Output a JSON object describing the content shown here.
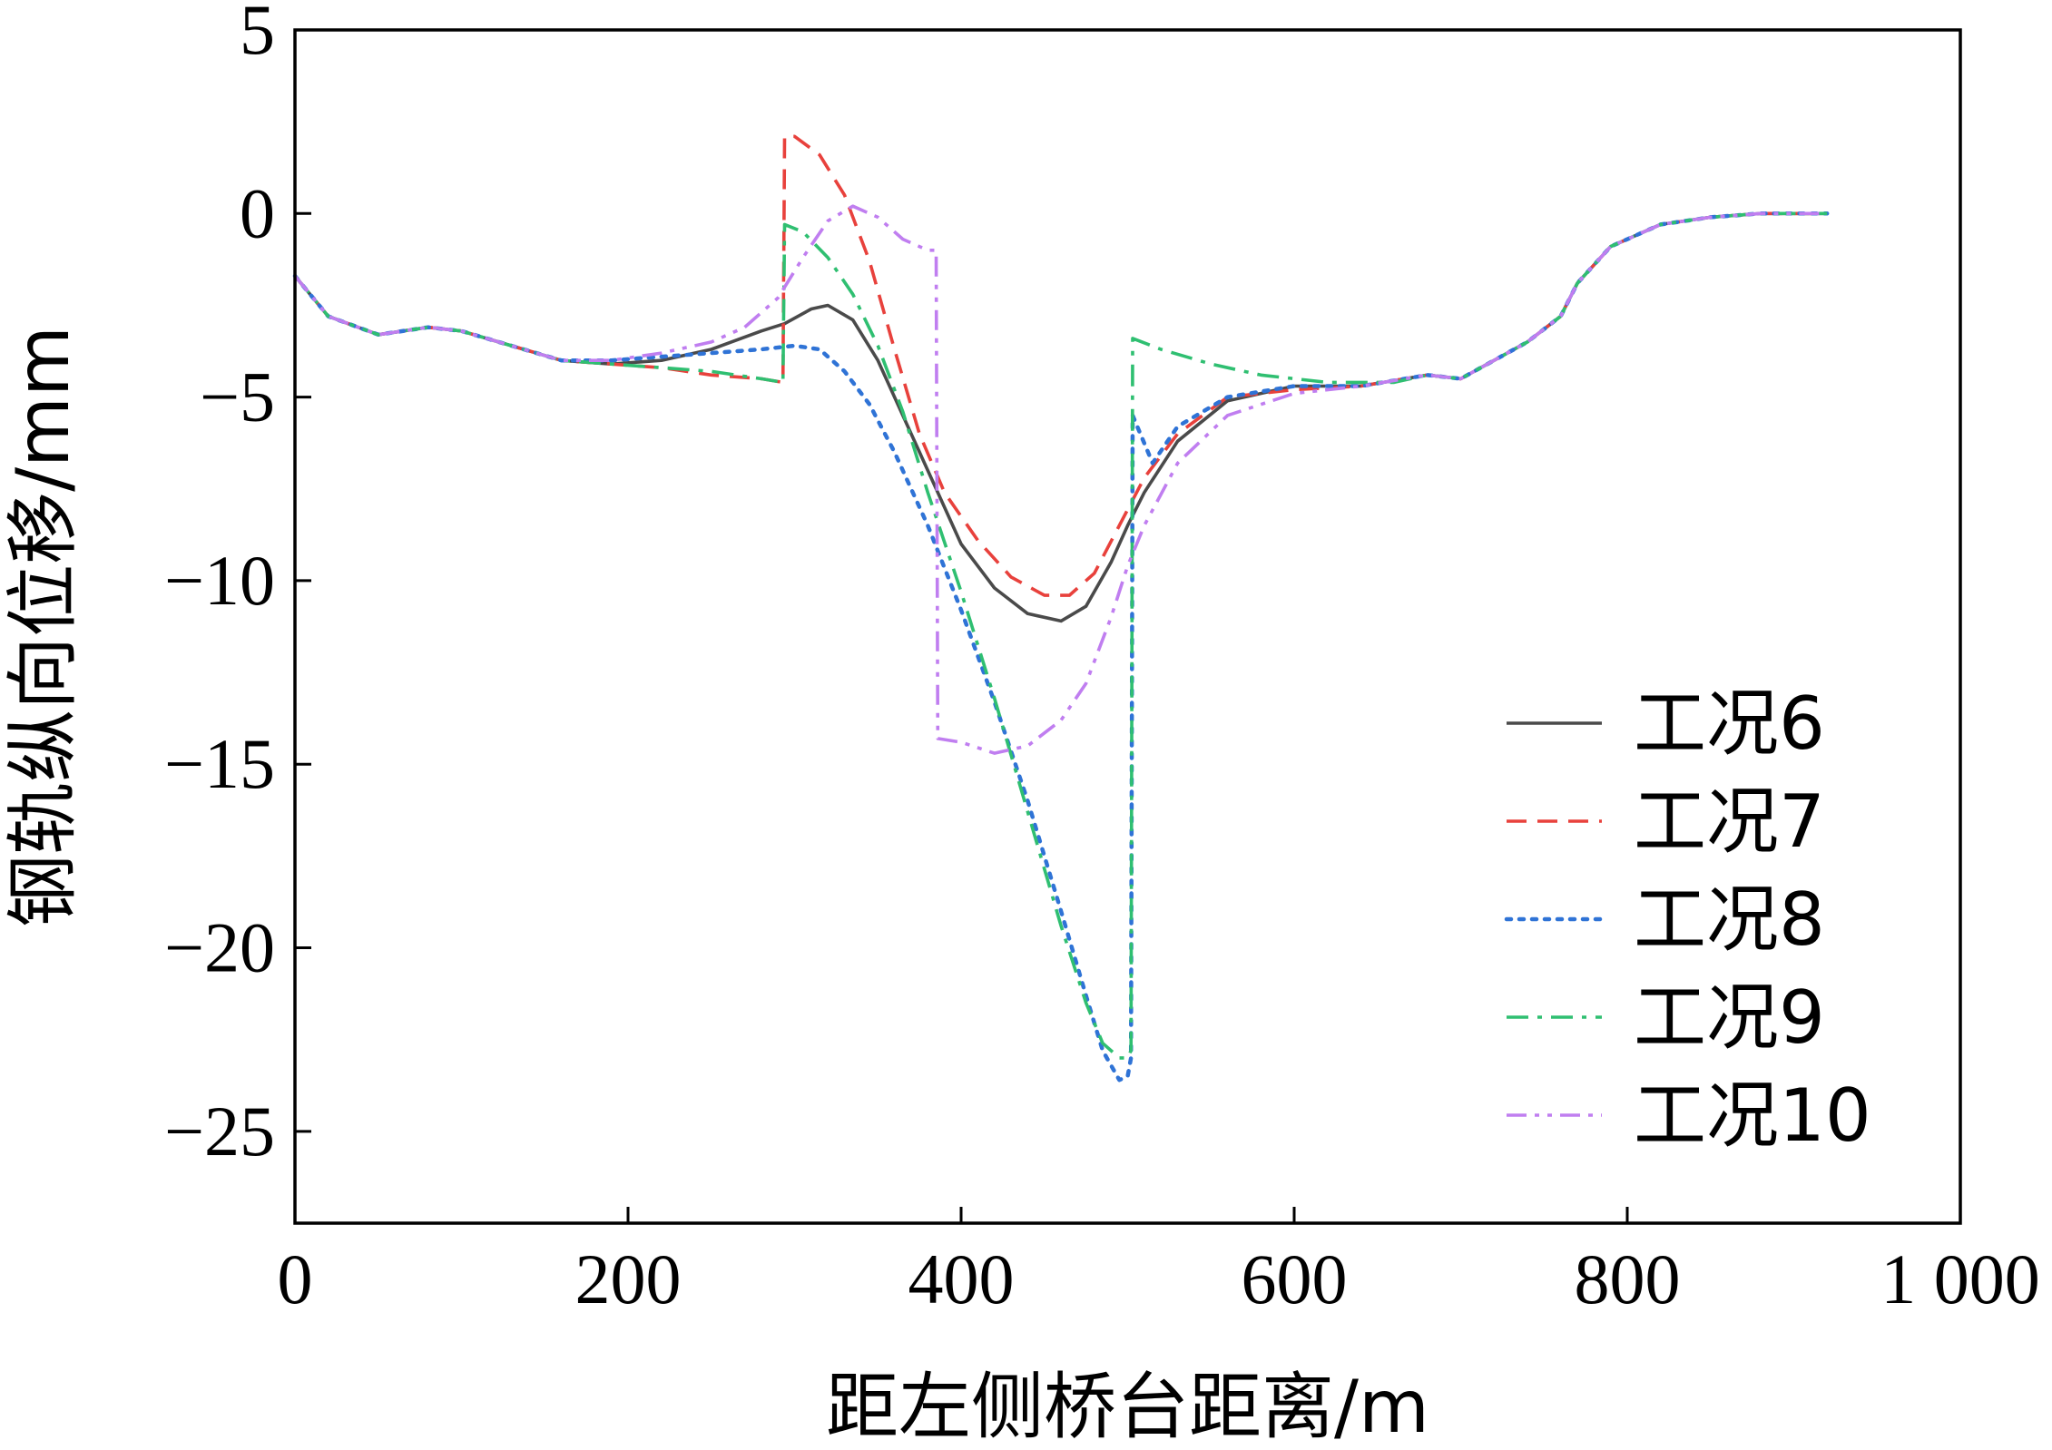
{
  "chart_data": {
    "type": "line",
    "title": "",
    "xlabel": "距左侧桥台距离/m",
    "ylabel": "钢轨纵向位移/mm",
    "xlim": [
      0,
      1000
    ],
    "ylim": [
      -27.5,
      5
    ],
    "grid": false,
    "legend_position": "lower-right",
    "x_ticks": [
      0,
      200,
      400,
      600,
      800,
      1000
    ],
    "x_tick_labels": [
      "0",
      "200",
      "400",
      "600",
      "800",
      "1 000"
    ],
    "y_ticks": [
      5,
      0,
      -5,
      -10,
      -15,
      -20,
      -25
    ],
    "y_tick_labels": [
      "5",
      "0",
      "−5",
      "−10",
      "−15",
      "−20",
      "−25"
    ],
    "series": [
      {
        "name": "工况6",
        "color": "#4a4a4a",
        "dash": "solid",
        "points": [
          [
            0,
            -1.7
          ],
          [
            20,
            -2.8
          ],
          [
            50,
            -3.3
          ],
          [
            80,
            -3.1
          ],
          [
            100,
            -3.2
          ],
          [
            130,
            -3.6
          ],
          [
            160,
            -4.0
          ],
          [
            190,
            -4.1
          ],
          [
            220,
            -4.0
          ],
          [
            250,
            -3.7
          ],
          [
            280,
            -3.2
          ],
          [
            294,
            -3.0
          ],
          [
            310,
            -2.6
          ],
          [
            320,
            -2.5
          ],
          [
            335,
            -2.9
          ],
          [
            350,
            -4.0
          ],
          [
            370,
            -6.0
          ],
          [
            385,
            -7.5
          ],
          [
            400,
            -9.0
          ],
          [
            420,
            -10.2
          ],
          [
            440,
            -10.9
          ],
          [
            460,
            -11.1
          ],
          [
            475,
            -10.7
          ],
          [
            490,
            -9.5
          ],
          [
            500,
            -8.5
          ],
          [
            510,
            -7.6
          ],
          [
            530,
            -6.2
          ],
          [
            560,
            -5.1
          ],
          [
            600,
            -4.7
          ],
          [
            640,
            -4.7
          ],
          [
            680,
            -4.4
          ],
          [
            700,
            -4.5
          ],
          [
            720,
            -4.0
          ],
          [
            740,
            -3.5
          ],
          [
            760,
            -2.8
          ],
          [
            770,
            -1.9
          ],
          [
            790,
            -0.9
          ],
          [
            820,
            -0.3
          ],
          [
            850,
            -0.1
          ],
          [
            880,
            0
          ],
          [
            920,
            0
          ]
        ]
      },
      {
        "name": "工况7",
        "color": "#e8413c",
        "dash": "dash",
        "points": [
          [
            0,
            -1.7
          ],
          [
            20,
            -2.8
          ],
          [
            50,
            -3.3
          ],
          [
            80,
            -3.1
          ],
          [
            100,
            -3.2
          ],
          [
            130,
            -3.6
          ],
          [
            160,
            -4.0
          ],
          [
            190,
            -4.1
          ],
          [
            220,
            -4.2
          ],
          [
            250,
            -4.4
          ],
          [
            280,
            -4.5
          ],
          [
            293,
            -4.6
          ],
          [
            294,
            2.1
          ],
          [
            300,
            2.1
          ],
          [
            315,
            1.6
          ],
          [
            330,
            0.5
          ],
          [
            345,
            -1.3
          ],
          [
            360,
            -3.7
          ],
          [
            375,
            -6.0
          ],
          [
            390,
            -7.6
          ],
          [
            410,
            -8.9
          ],
          [
            430,
            -9.9
          ],
          [
            450,
            -10.4
          ],
          [
            465,
            -10.4
          ],
          [
            480,
            -9.8
          ],
          [
            495,
            -8.5
          ],
          [
            510,
            -7.2
          ],
          [
            530,
            -6.0
          ],
          [
            560,
            -5.0
          ],
          [
            600,
            -4.8
          ],
          [
            640,
            -4.7
          ],
          [
            680,
            -4.4
          ],
          [
            700,
            -4.5
          ],
          [
            720,
            -4.0
          ],
          [
            740,
            -3.5
          ],
          [
            760,
            -2.8
          ],
          [
            770,
            -1.9
          ],
          [
            790,
            -0.9
          ],
          [
            820,
            -0.3
          ],
          [
            850,
            -0.1
          ],
          [
            880,
            0
          ],
          [
            920,
            0
          ]
        ]
      },
      {
        "name": "工况8",
        "color": "#2f73d6",
        "dash": "dot",
        "points": [
          [
            0,
            -1.7
          ],
          [
            20,
            -2.8
          ],
          [
            50,
            -3.3
          ],
          [
            80,
            -3.1
          ],
          [
            100,
            -3.2
          ],
          [
            130,
            -3.6
          ],
          [
            160,
            -4.0
          ],
          [
            190,
            -4.0
          ],
          [
            220,
            -3.9
          ],
          [
            250,
            -3.8
          ],
          [
            280,
            -3.7
          ],
          [
            300,
            -3.6
          ],
          [
            315,
            -3.7
          ],
          [
            330,
            -4.3
          ],
          [
            345,
            -5.2
          ],
          [
            360,
            -6.5
          ],
          [
            380,
            -8.5
          ],
          [
            400,
            -10.8
          ],
          [
            420,
            -13.3
          ],
          [
            440,
            -16.0
          ],
          [
            460,
            -19.0
          ],
          [
            475,
            -21.3
          ],
          [
            485,
            -22.8
          ],
          [
            495,
            -23.6
          ],
          [
            500,
            -23.5
          ],
          [
            502,
            -23.0
          ],
          [
            503,
            -5.5
          ],
          [
            515,
            -6.8
          ],
          [
            530,
            -5.8
          ],
          [
            560,
            -5.0
          ],
          [
            600,
            -4.7
          ],
          [
            640,
            -4.7
          ],
          [
            680,
            -4.4
          ],
          [
            700,
            -4.5
          ],
          [
            720,
            -4.0
          ],
          [
            740,
            -3.5
          ],
          [
            760,
            -2.8
          ],
          [
            770,
            -1.9
          ],
          [
            790,
            -0.9
          ],
          [
            820,
            -0.3
          ],
          [
            850,
            -0.1
          ],
          [
            880,
            0
          ],
          [
            920,
            0
          ]
        ]
      },
      {
        "name": "工况9",
        "color": "#2fbf71",
        "dash": "dashdot",
        "points": [
          [
            0,
            -1.7
          ],
          [
            20,
            -2.8
          ],
          [
            50,
            -3.3
          ],
          [
            80,
            -3.1
          ],
          [
            100,
            -3.2
          ],
          [
            130,
            -3.6
          ],
          [
            160,
            -4.0
          ],
          [
            190,
            -4.1
          ],
          [
            220,
            -4.2
          ],
          [
            250,
            -4.3
          ],
          [
            280,
            -4.5
          ],
          [
            293,
            -4.6
          ],
          [
            294,
            -0.3
          ],
          [
            305,
            -0.5
          ],
          [
            320,
            -1.2
          ],
          [
            335,
            -2.2
          ],
          [
            350,
            -3.6
          ],
          [
            365,
            -5.4
          ],
          [
            380,
            -7.6
          ],
          [
            400,
            -10.3
          ],
          [
            420,
            -13.2
          ],
          [
            440,
            -16.3
          ],
          [
            460,
            -19.4
          ],
          [
            475,
            -21.5
          ],
          [
            485,
            -22.6
          ],
          [
            495,
            -23.0
          ],
          [
            500,
            -23.0
          ],
          [
            502,
            -22.8
          ],
          [
            503,
            -3.4
          ],
          [
            520,
            -3.7
          ],
          [
            550,
            -4.1
          ],
          [
            580,
            -4.4
          ],
          [
            620,
            -4.6
          ],
          [
            660,
            -4.6
          ],
          [
            680,
            -4.4
          ],
          [
            700,
            -4.5
          ],
          [
            720,
            -4.0
          ],
          [
            740,
            -3.5
          ],
          [
            760,
            -2.8
          ],
          [
            770,
            -1.9
          ],
          [
            790,
            -0.9
          ],
          [
            820,
            -0.3
          ],
          [
            850,
            -0.1
          ],
          [
            880,
            0
          ],
          [
            920,
            0
          ]
        ]
      },
      {
        "name": "工况10",
        "color": "#c07ef0",
        "dash": "dashdotdot",
        "points": [
          [
            0,
            -1.7
          ],
          [
            20,
            -2.8
          ],
          [
            50,
            -3.3
          ],
          [
            80,
            -3.1
          ],
          [
            100,
            -3.2
          ],
          [
            130,
            -3.6
          ],
          [
            160,
            -4.0
          ],
          [
            190,
            -4.0
          ],
          [
            220,
            -3.8
          ],
          [
            250,
            -3.5
          ],
          [
            270,
            -3.1
          ],
          [
            290,
            -2.3
          ],
          [
            305,
            -1.2
          ],
          [
            320,
            -0.2
          ],
          [
            335,
            0.2
          ],
          [
            350,
            -0.1
          ],
          [
            365,
            -0.7
          ],
          [
            380,
            -1.0
          ],
          [
            385,
            -1.0
          ],
          [
            386,
            -14.3
          ],
          [
            400,
            -14.4
          ],
          [
            420,
            -14.7
          ],
          [
            440,
            -14.5
          ],
          [
            460,
            -13.8
          ],
          [
            475,
            -12.8
          ],
          [
            490,
            -11.0
          ],
          [
            500,
            -9.6
          ],
          [
            510,
            -8.5
          ],
          [
            530,
            -6.8
          ],
          [
            560,
            -5.5
          ],
          [
            600,
            -4.9
          ],
          [
            640,
            -4.7
          ],
          [
            680,
            -4.4
          ],
          [
            700,
            -4.5
          ],
          [
            720,
            -4.0
          ],
          [
            740,
            -3.5
          ],
          [
            760,
            -2.8
          ],
          [
            770,
            -1.9
          ],
          [
            790,
            -0.9
          ],
          [
            820,
            -0.3
          ],
          [
            850,
            -0.1
          ],
          [
            880,
            0
          ],
          [
            920,
            0
          ]
        ]
      }
    ]
  }
}
